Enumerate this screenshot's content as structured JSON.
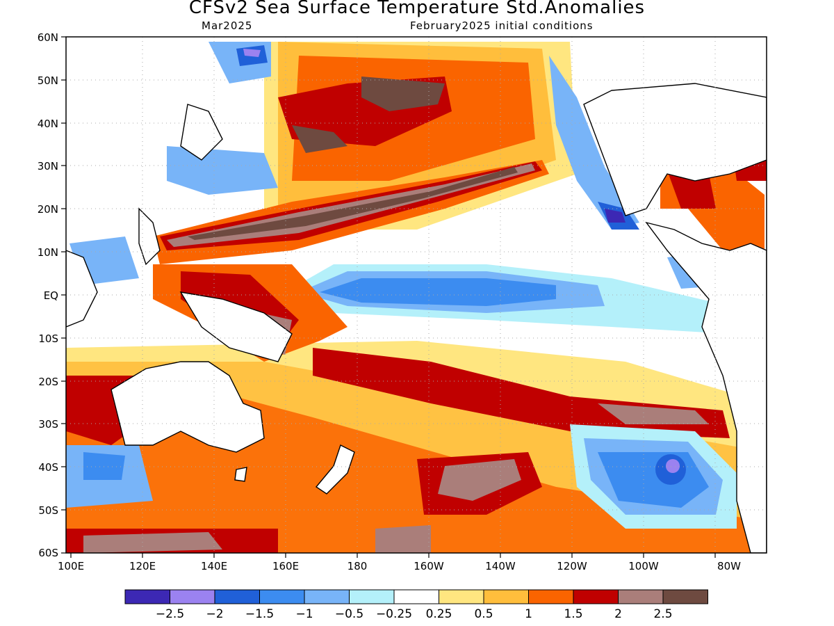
{
  "header": {
    "title": "CFSv2 Sea Surface Temperature Std.Anomalies",
    "valid_month": "Mar2025",
    "init_conditions": "February2025 initial conditions"
  },
  "map": {
    "lat_labels": [
      "60N",
      "50N",
      "40N",
      "30N",
      "20N",
      "10N",
      "EQ",
      "10S",
      "20S",
      "30S",
      "40S",
      "50S",
      "60S"
    ],
    "lon_labels": [
      "100E",
      "120E",
      "140E",
      "160E",
      "180",
      "160W",
      "140W",
      "120W",
      "100W",
      "80W"
    ]
  },
  "colorbar": {
    "colors": [
      "#3c28b4",
      "#9b82f0",
      "#2060d8",
      "#3c8cf0",
      "#78b4f8",
      "#b4f0fa",
      "#ffffff",
      "#ffe680",
      "#ffbe3c",
      "#fa6400",
      "#c00000",
      "#aa7e7a",
      "#6e4a40"
    ],
    "labels": [
      "-2.5",
      "-2",
      "-1.5",
      "-1",
      "-0.5",
      "-0.25",
      "0.25",
      "0.5",
      "1",
      "1.5",
      "2",
      "2.5"
    ]
  }
}
